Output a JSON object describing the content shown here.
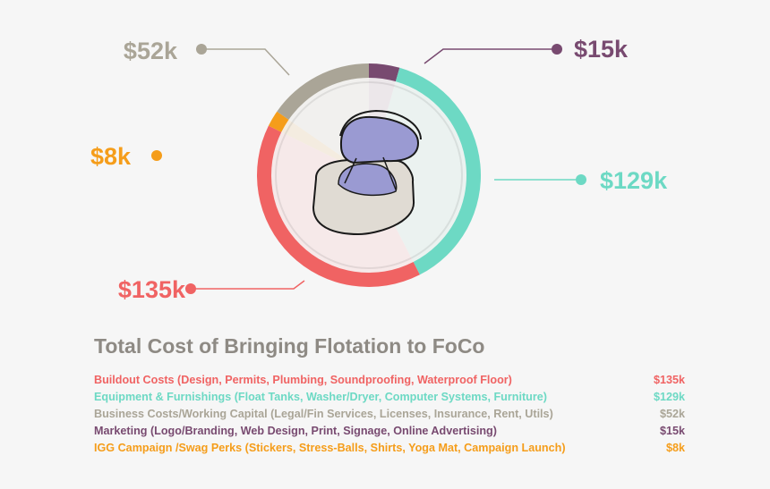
{
  "chart_data": {
    "type": "pie",
    "title": "Total Cost of Bringing Flotation to FoCo",
    "slices": [
      {
        "description": "Buildout Costs (Design, Permits, Plumbing, Soundproofing, Waterproof Floor)",
        "value": 135,
        "label": "$135k",
        "color": "#f06363",
        "light": "#f6e9e9"
      },
      {
        "description": "Equipment & Furnishings (Float Tanks, Washer/Dryer, Computer Systems, Furniture)",
        "value": 129,
        "label": "$129k",
        "color": "#6dd9c4",
        "light": "#ebf2f0"
      },
      {
        "description": "Business Costs/Working Capital (Legal/Fin Services, Licenses, Insurance, Rent, Utils)",
        "value": 52,
        "label": "$52k",
        "color": "#aaa597",
        "light": "#f1f0ee"
      },
      {
        "description": "Marketing (Logo/Branding, Web Design, Print, Signage, Online Advertising)",
        "value": 15,
        "label": "$15k",
        "color": "#784a70",
        "light": "#ece7ea"
      },
      {
        "description": "IGG Campaign /Swag Perks (Stickers, Stress-Balls, Shirts, Yoga Mat, Campaign Launch)",
        "value": 8,
        "label": "$8k",
        "color": "#f59d1a",
        "light": "#f4ece0"
      }
    ],
    "legend_position": "bottom"
  }
}
